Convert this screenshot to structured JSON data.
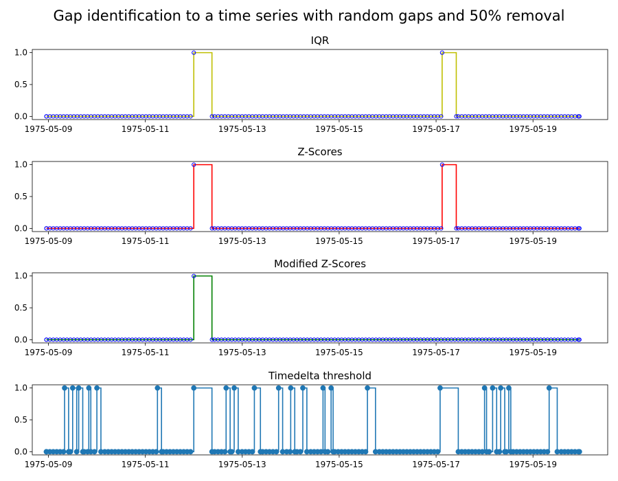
{
  "figure": {
    "suptitle": "Gap identification to a time series with random gaps and 50% removal"
  },
  "colors": {
    "iqr": "#bfbf00",
    "zscores": "#ff0000",
    "modified_zscores": "#008000",
    "timedelta": "#1f77b4",
    "marker_edge": "#0000ff"
  },
  "chart_data": [
    {
      "type": "line",
      "title": "IQR",
      "x_ticks": [
        "1975-05-09",
        "1975-05-11",
        "1975-05-13",
        "1975-05-15",
        "1975-05-17",
        "1975-05-19"
      ],
      "y_ticks": [
        "0.0",
        "0.5",
        "1.0"
      ],
      "ylim": [
        -0.05,
        1.05
      ],
      "xlim": [
        "1975-05-08 16:00",
        "1975-05-20 13:00"
      ],
      "series": [
        {
          "step_where": "post",
          "color": "#bfbf00",
          "points": [
            {
              "x": "1975-05-08 23:00",
              "y": 0
            },
            {
              "x": "1975-05-12 00:00",
              "y": 1
            },
            {
              "x": "1975-05-12 09:00",
              "y": 0
            },
            {
              "x": "1975-05-17 03:00",
              "y": 1
            },
            {
              "x": "1975-05-17 10:00",
              "y": 0
            },
            {
              "x": "1975-05-19 23:00",
              "y": 0
            }
          ]
        }
      ]
    },
    {
      "type": "line",
      "title": "Z-Scores",
      "x_ticks": [
        "1975-05-09",
        "1975-05-11",
        "1975-05-13",
        "1975-05-15",
        "1975-05-17",
        "1975-05-19"
      ],
      "y_ticks": [
        "0.0",
        "0.5",
        "1.0"
      ],
      "ylim": [
        -0.05,
        1.05
      ],
      "xlim": [
        "1975-05-08 16:00",
        "1975-05-20 13:00"
      ],
      "series": [
        {
          "step_where": "post",
          "color": "#ff0000",
          "points": [
            {
              "x": "1975-05-08 23:00",
              "y": 0
            },
            {
              "x": "1975-05-12 00:00",
              "y": 1
            },
            {
              "x": "1975-05-12 09:00",
              "y": 0
            },
            {
              "x": "1975-05-17 03:00",
              "y": 1
            },
            {
              "x": "1975-05-17 10:00",
              "y": 0
            },
            {
              "x": "1975-05-19 23:00",
              "y": 0
            }
          ]
        }
      ]
    },
    {
      "type": "line",
      "title": "Modified Z-Scores",
      "x_ticks": [
        "1975-05-09",
        "1975-05-11",
        "1975-05-13",
        "1975-05-15",
        "1975-05-17",
        "1975-05-19"
      ],
      "y_ticks": [
        "0.0",
        "0.5",
        "1.0"
      ],
      "ylim": [
        -0.05,
        1.05
      ],
      "xlim": [
        "1975-05-08 16:00",
        "1975-05-20 13:00"
      ],
      "series": [
        {
          "step_where": "post",
          "color": "#008000",
          "points": [
            {
              "x": "1975-05-08 23:00",
              "y": 0
            },
            {
              "x": "1975-05-12 00:00",
              "y": 1
            },
            {
              "x": "1975-05-12 09:00",
              "y": 0
            },
            {
              "x": "1975-05-19 23:00",
              "y": 0
            }
          ]
        }
      ]
    },
    {
      "type": "line",
      "title": "Timedelta threshold",
      "x_ticks": [
        "1975-05-09",
        "1975-05-11",
        "1975-05-13",
        "1975-05-15",
        "1975-05-17",
        "1975-05-19"
      ],
      "y_ticks": [
        "0.0",
        "0.5",
        "1.0"
      ],
      "ylim": [
        -0.05,
        1.05
      ],
      "xlim": [
        "1975-05-08 16:00",
        "1975-05-20 13:00"
      ],
      "series": [
        {
          "step_where": "post",
          "color": "#1f77b4",
          "points": [
            {
              "x": "1975-05-08 23:00",
              "y": 0
            },
            {
              "x": "1975-05-09 08:00",
              "y": 1
            },
            {
              "x": "1975-05-09 10:00",
              "y": 0
            },
            {
              "x": "1975-05-09 12:00",
              "y": 1
            },
            {
              "x": "1975-05-09 14:00",
              "y": 0
            },
            {
              "x": "1975-05-09 15:00",
              "y": 1
            },
            {
              "x": "1975-05-09 17:00",
              "y": 0
            },
            {
              "x": "1975-05-09 20:00",
              "y": 1
            },
            {
              "x": "1975-05-09 21:00",
              "y": 0
            },
            {
              "x": "1975-05-10 00:00",
              "y": 1
            },
            {
              "x": "1975-05-10 02:00",
              "y": 0
            },
            {
              "x": "1975-05-11 06:00",
              "y": 1
            },
            {
              "x": "1975-05-11 08:00",
              "y": 0
            },
            {
              "x": "1975-05-12 00:00",
              "y": 1
            },
            {
              "x": "1975-05-12 09:00",
              "y": 0
            },
            {
              "x": "1975-05-12 16:00",
              "y": 1
            },
            {
              "x": "1975-05-12 18:00",
              "y": 0
            },
            {
              "x": "1975-05-12 20:00",
              "y": 1
            },
            {
              "x": "1975-05-12 22:00",
              "y": 0
            },
            {
              "x": "1975-05-13 06:00",
              "y": 1
            },
            {
              "x": "1975-05-13 09:00",
              "y": 0
            },
            {
              "x": "1975-05-13 18:00",
              "y": 1
            },
            {
              "x": "1975-05-13 20:00",
              "y": 0
            },
            {
              "x": "1975-05-14 00:00",
              "y": 1
            },
            {
              "x": "1975-05-14 02:00",
              "y": 0
            },
            {
              "x": "1975-05-14 06:00",
              "y": 1
            },
            {
              "x": "1975-05-14 08:00",
              "y": 0
            },
            {
              "x": "1975-05-14 16:00",
              "y": 1
            },
            {
              "x": "1975-05-14 17:00",
              "y": 0
            },
            {
              "x": "1975-05-14 20:00",
              "y": 1
            },
            {
              "x": "1975-05-14 21:00",
              "y": 0
            },
            {
              "x": "1975-05-15 14:00",
              "y": 1
            },
            {
              "x": "1975-05-15 18:00",
              "y": 0
            },
            {
              "x": "1975-05-17 02:00",
              "y": 1
            },
            {
              "x": "1975-05-17 11:00",
              "y": 0
            },
            {
              "x": "1975-05-18 00:00",
              "y": 1
            },
            {
              "x": "1975-05-18 01:00",
              "y": 0
            },
            {
              "x": "1975-05-18 04:00",
              "y": 1
            },
            {
              "x": "1975-05-18 06:00",
              "y": 0
            },
            {
              "x": "1975-05-18 08:00",
              "y": 1
            },
            {
              "x": "1975-05-18 10:00",
              "y": 0
            },
            {
              "x": "1975-05-18 12:00",
              "y": 1
            },
            {
              "x": "1975-05-18 13:00",
              "y": 0
            },
            {
              "x": "1975-05-19 08:00",
              "y": 1
            },
            {
              "x": "1975-05-19 12:00",
              "y": 0
            },
            {
              "x": "1975-05-19 23:00",
              "y": 0
            }
          ]
        }
      ]
    }
  ]
}
